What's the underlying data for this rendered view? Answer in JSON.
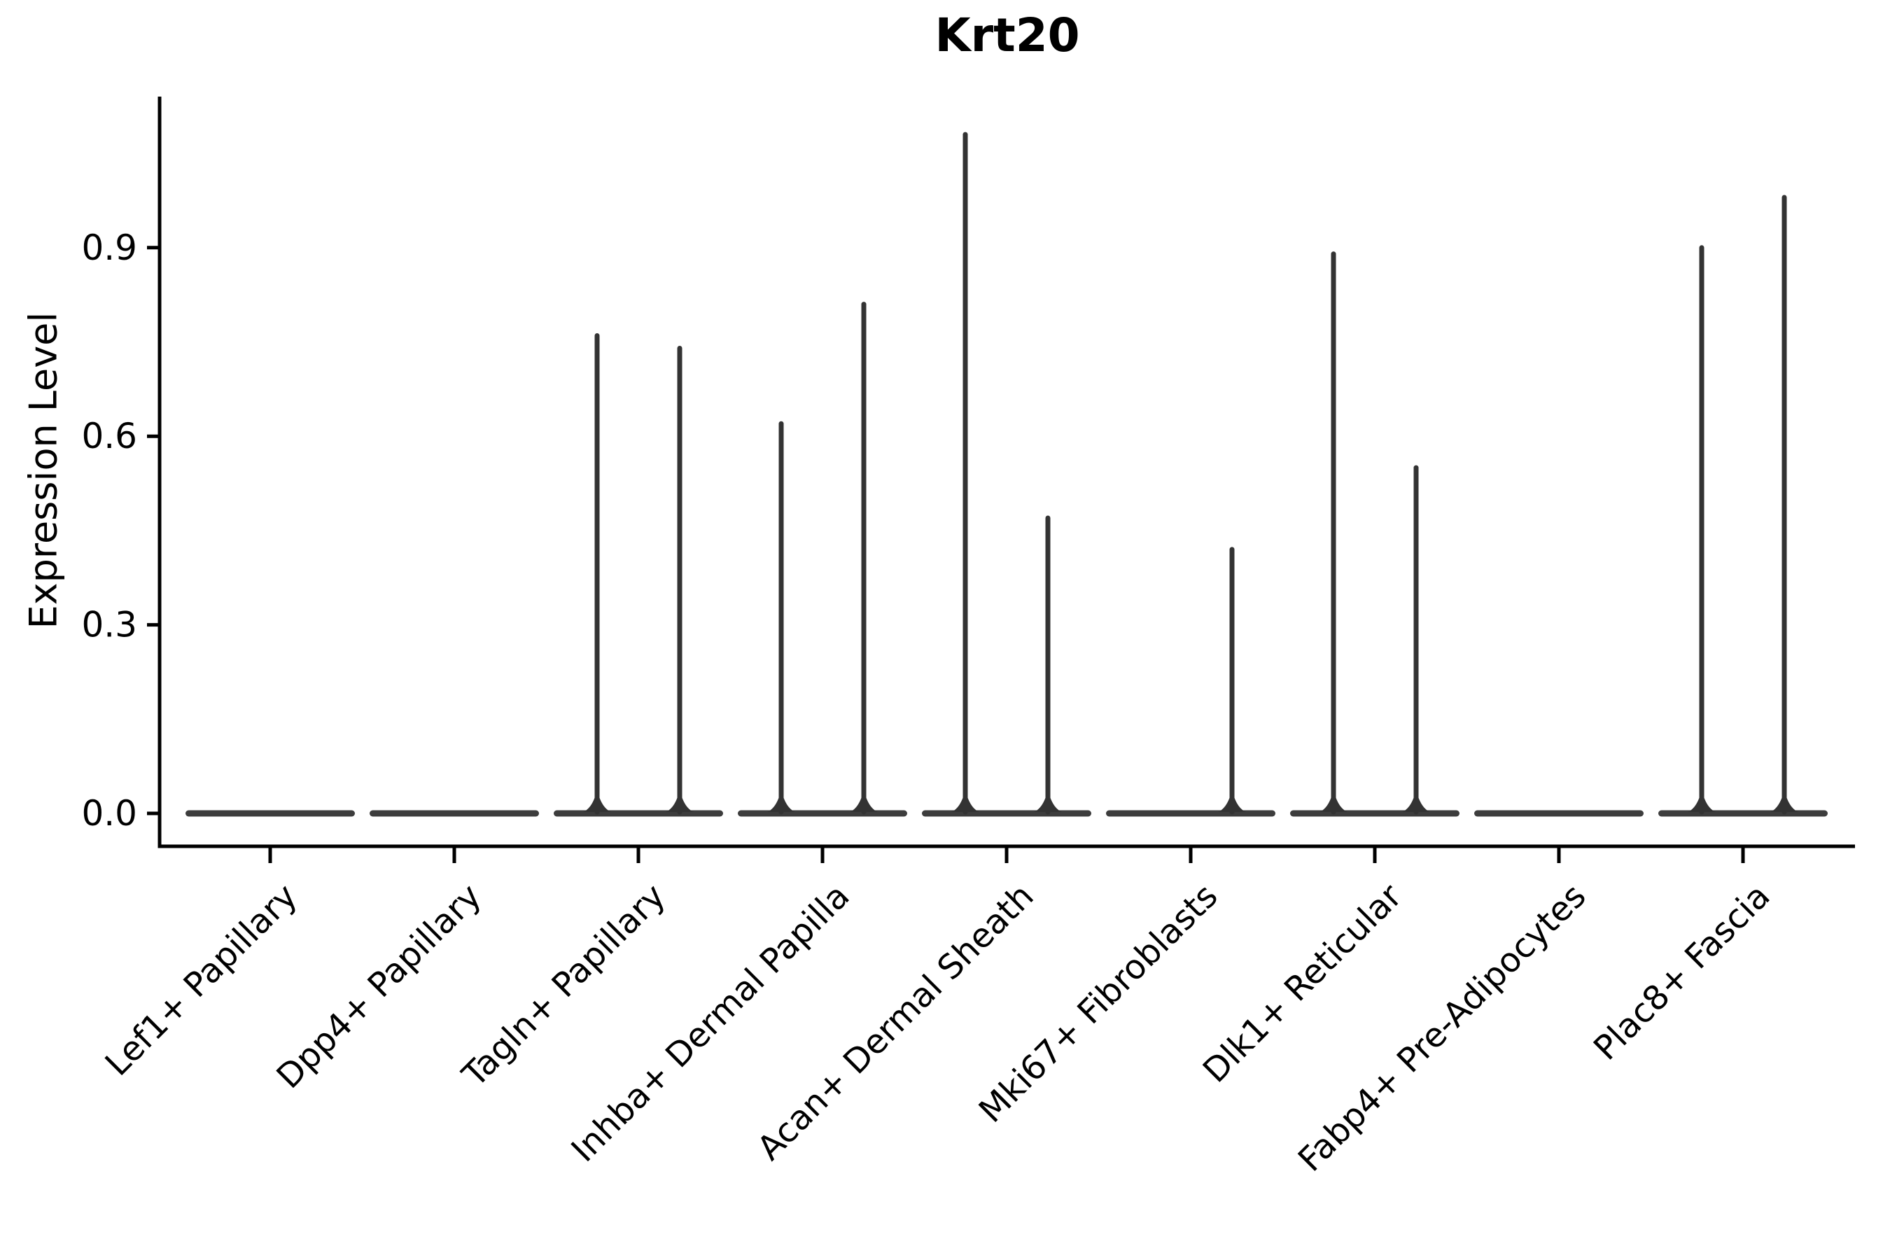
{
  "chart_data": {
    "type": "violin",
    "title": "Krt20",
    "xlabel": "",
    "ylabel": "Expression Level",
    "legend": "none",
    "grid": false,
    "ylim": [
      -0.05,
      1.14
    ],
    "yticks": [
      {
        "value": 0.0,
        "label": "0.0"
      },
      {
        "value": 0.3,
        "label": "0.3"
      },
      {
        "value": 0.6,
        "label": "0.6"
      },
      {
        "value": 0.9,
        "label": "0.9"
      }
    ],
    "categories": [
      "Lef1+ Papillary",
      "Dpp4+ Papillary",
      "Tagln+ Papillary",
      "Inhba+ Dermal Papilla",
      "Acan+ Dermal Sheath",
      "Mki67+ Fibroblasts",
      "Dlk1+ Reticular",
      "Fabp4+ Pre-Adipocytes",
      "Plac8+ Fascia"
    ],
    "violins": [
      {
        "category": "Lef1+ Papillary",
        "bulk_at": 0.0,
        "spikes": []
      },
      {
        "category": "Dpp4+ Papillary",
        "bulk_at": 0.0,
        "spikes": []
      },
      {
        "category": "Tagln+ Papillary",
        "bulk_at": 0.0,
        "spikes": [
          {
            "pos": "left",
            "max": 0.76
          },
          {
            "pos": "right",
            "max": 0.74
          }
        ]
      },
      {
        "category": "Inhba+ Dermal Papilla",
        "bulk_at": 0.0,
        "spikes": [
          {
            "pos": "left",
            "max": 0.62
          },
          {
            "pos": "right",
            "max": 0.81
          }
        ]
      },
      {
        "category": "Acan+ Dermal Sheath",
        "bulk_at": 0.0,
        "spikes": [
          {
            "pos": "left",
            "max": 1.08
          },
          {
            "pos": "right",
            "max": 0.47
          }
        ]
      },
      {
        "category": "Mki67+ Fibroblasts",
        "bulk_at": 0.0,
        "spikes": [
          {
            "pos": "right",
            "max": 0.42
          }
        ]
      },
      {
        "category": "Dlk1+ Reticular",
        "bulk_at": 0.0,
        "spikes": [
          {
            "pos": "left",
            "max": 0.89
          },
          {
            "pos": "right",
            "max": 0.55
          }
        ]
      },
      {
        "category": "Fabp4+ Pre-Adipocytes",
        "bulk_at": 0.0,
        "spikes": []
      },
      {
        "category": "Plac8+ Fascia",
        "bulk_at": 0.0,
        "spikes": [
          {
            "pos": "left",
            "max": 0.9
          },
          {
            "pos": "right",
            "max": 0.98
          }
        ]
      }
    ],
    "colors": {
      "violin": "#333333",
      "violin_base": "#3d3d3d",
      "axis": "#000000",
      "background": "#ffffff"
    }
  }
}
